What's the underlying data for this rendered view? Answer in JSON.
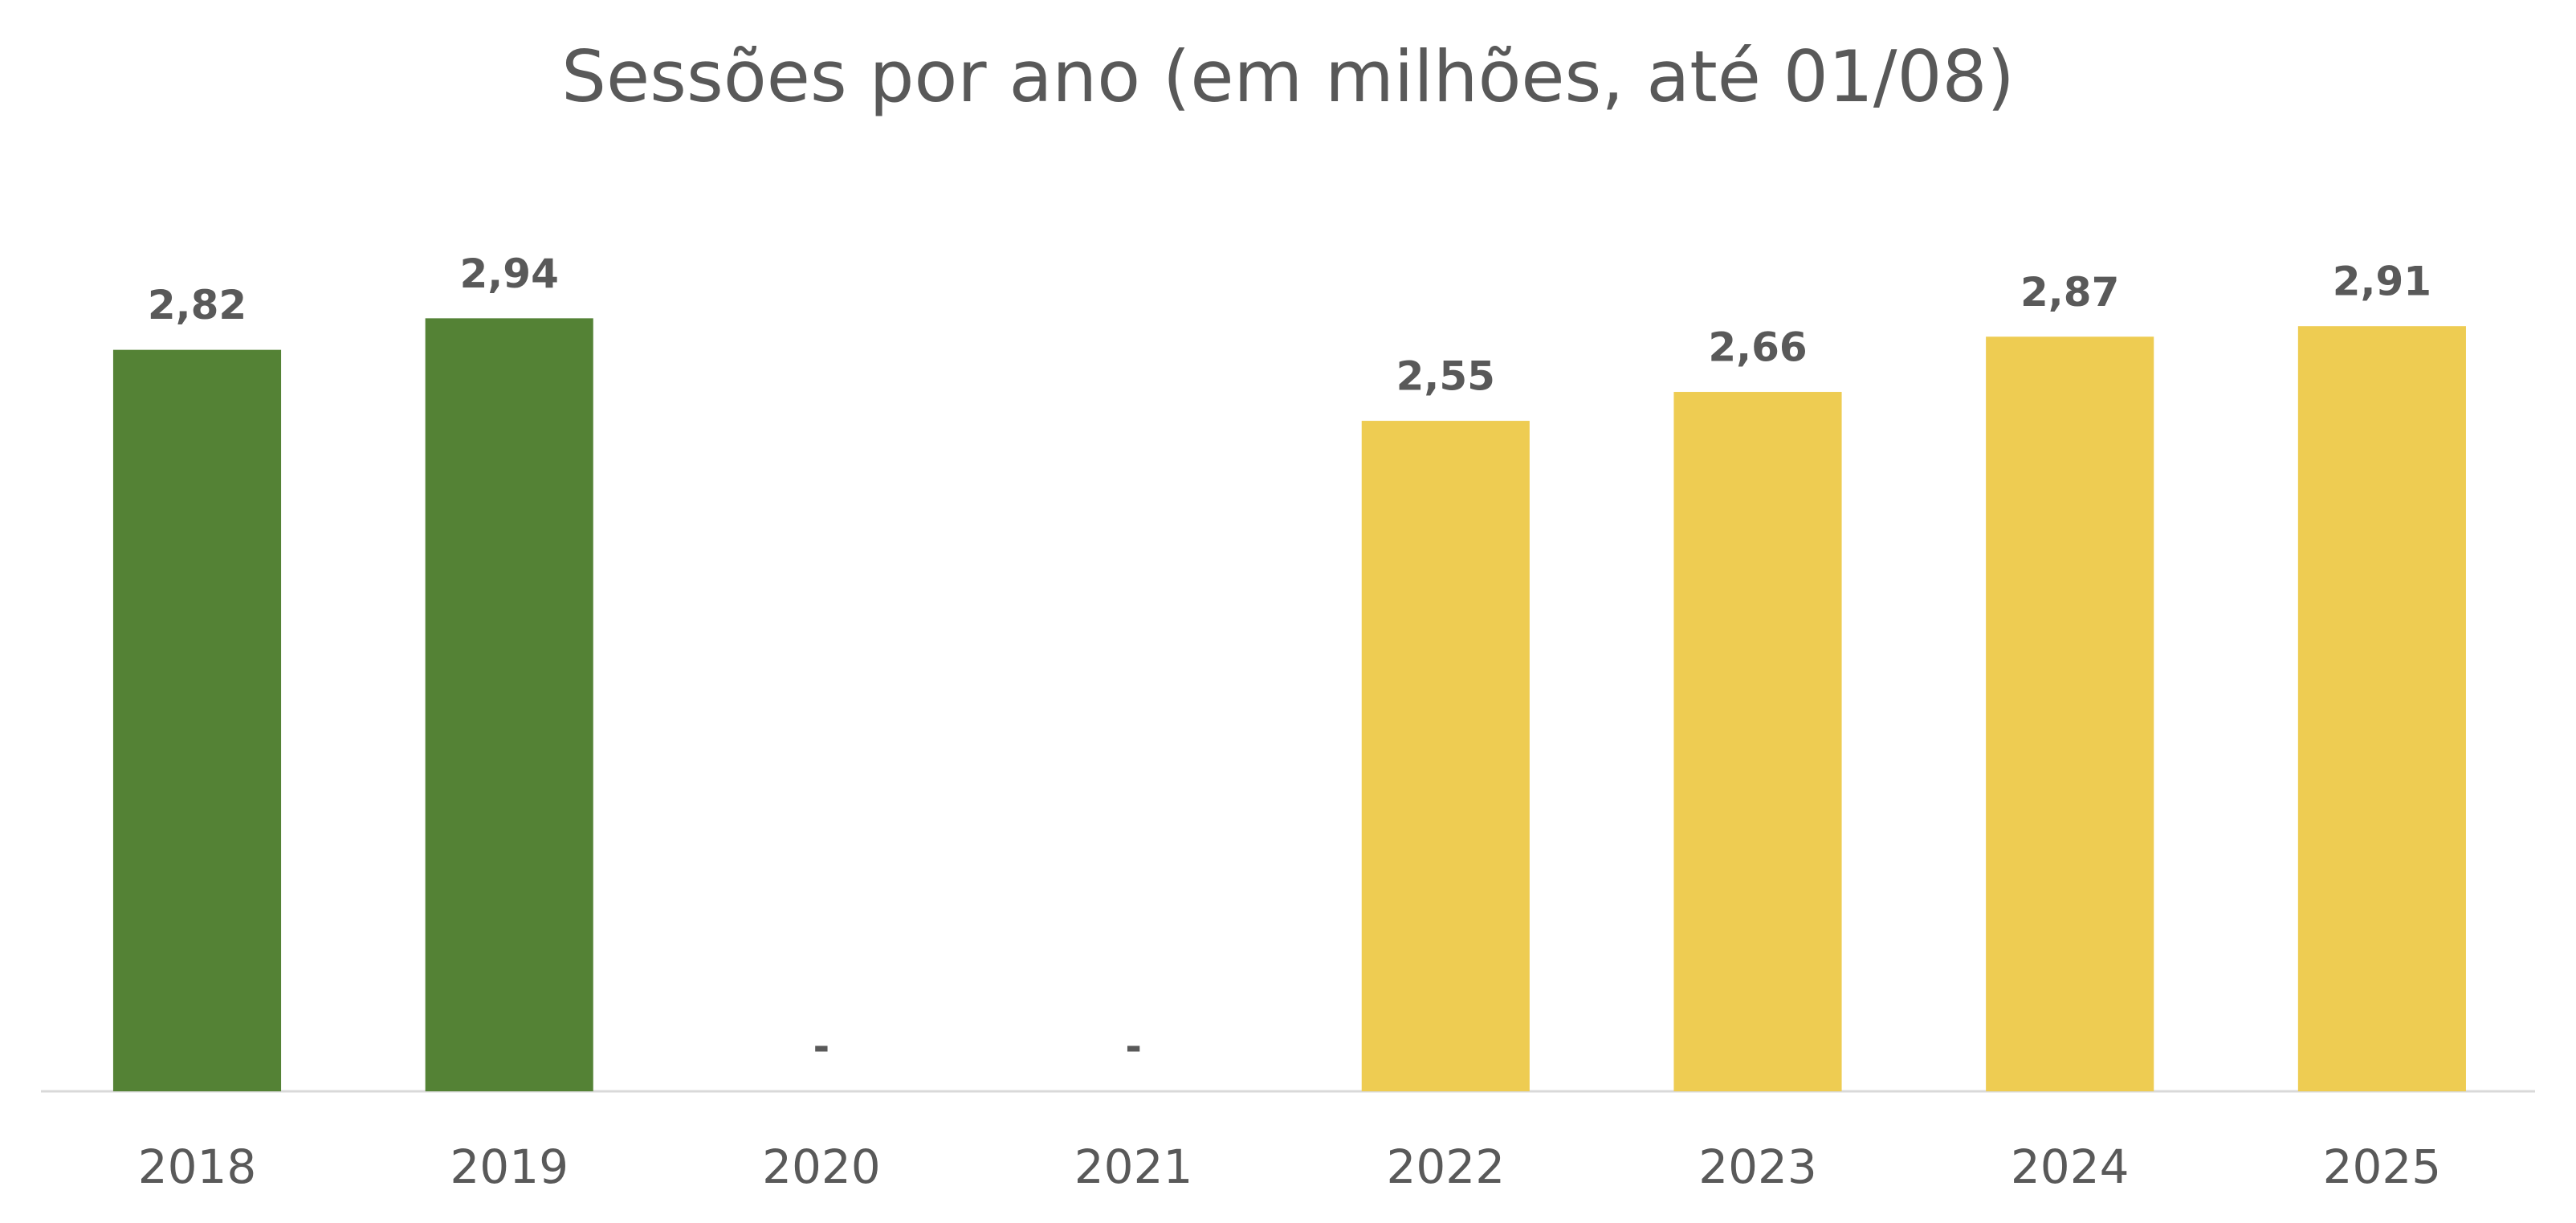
{
  "chart_data": {
    "type": "bar",
    "title": "Sessões por ano (em milhões, até 01/08)",
    "categories": [
      "2018",
      "2019",
      "2020",
      "2021",
      "2022",
      "2023",
      "2024",
      "2025"
    ],
    "values": [
      2.82,
      2.94,
      0,
      0,
      2.55,
      2.66,
      2.87,
      2.91
    ],
    "value_labels": [
      "2,82",
      "2,94",
      "-",
      "-",
      "2,55",
      "2,66",
      "2,87",
      "2,91"
    ],
    "colors": [
      "#548235",
      "#548235",
      "#548235",
      "#548235",
      "#EECC52",
      "#EECC52",
      "#EECC52",
      "#EECC52"
    ],
    "ylim": [
      0,
      3.5
    ]
  }
}
